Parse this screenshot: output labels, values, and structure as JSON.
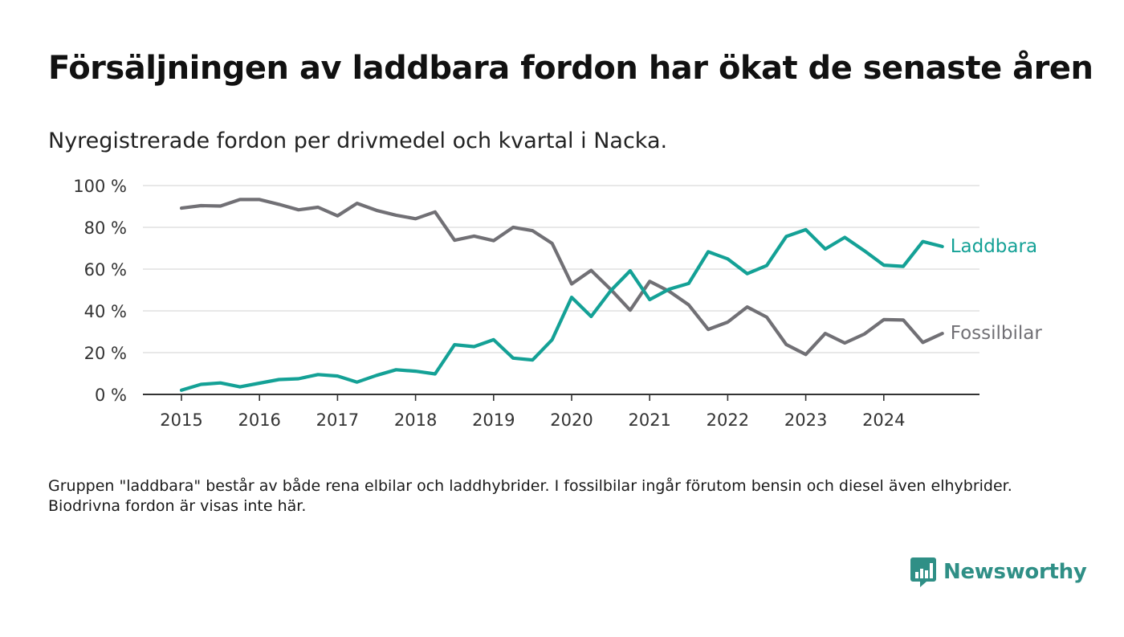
{
  "header": {
    "title": "Försäljningen av laddbara fordon har ökat de senaste åren",
    "subtitle": "Nyregistrerade fordon per drivmedel och kvartal i Nacka."
  },
  "footer": {
    "note": "Gruppen \"laddbara\" består av både rena elbilar och laddhybrider. I fossilbilar ingår förutom bensin och diesel även elhybrider. Biodrivna fordon är visas inte här.",
    "brand": "Newsworthy",
    "brand_icon": "bar-chart-speech-bubble-icon"
  },
  "chart_data": {
    "type": "line",
    "title": "Försäljningen av laddbara fordon har ökat de senaste åren",
    "subtitle": "Nyregistrerade fordon per drivmedel och kvartal i Nacka.",
    "xlabel": "",
    "ylabel": "",
    "x_start_year": 2015,
    "x_ticks": [
      "2015",
      "2016",
      "2017",
      "2018",
      "2019",
      "2020",
      "2021",
      "2022",
      "2023",
      "2024"
    ],
    "y_ticks": [
      0,
      20,
      40,
      60,
      80,
      100
    ],
    "y_tick_labels": [
      "0 %",
      "20 %",
      "40 %",
      "60 %",
      "80 %",
      "100 %"
    ],
    "ylim": [
      0,
      100
    ],
    "grid": true,
    "series": [
      {
        "name": "Laddbara",
        "color": "#14a196",
        "values": [
          2,
          4.8,
          5.5,
          3.6,
          5.4,
          7.1,
          7.5,
          9.5,
          8.8,
          5.9,
          9.1,
          11.8,
          11.1,
          9.8,
          23.8,
          22.9,
          26.2,
          17.4,
          16.5,
          26.2,
          46.5,
          37.3,
          49.6,
          59.2,
          45.4,
          50.4,
          53.1,
          68.3,
          64.9,
          57.8,
          61.7,
          75.6,
          78.9,
          69.6,
          75.2,
          68.8,
          61.9,
          61.3,
          73.2,
          70.8
        ]
      },
      {
        "name": "Fossilbilar",
        "color": "#717075",
        "values": [
          89.2,
          90.4,
          90.2,
          93.3,
          93.3,
          91,
          88.4,
          89.6,
          85.5,
          91.5,
          88.1,
          85.8,
          84.1,
          87.4,
          73.8,
          75.8,
          73.6,
          80,
          78.4,
          72.3,
          52.9,
          59.4,
          50.3,
          40.3,
          54.1,
          49.4,
          42.9,
          31.1,
          34.6,
          41.9,
          37,
          23.9,
          19.1,
          29.2,
          24.6,
          28.9,
          35.8,
          35.6,
          24.9,
          29.2
        ]
      }
    ]
  }
}
